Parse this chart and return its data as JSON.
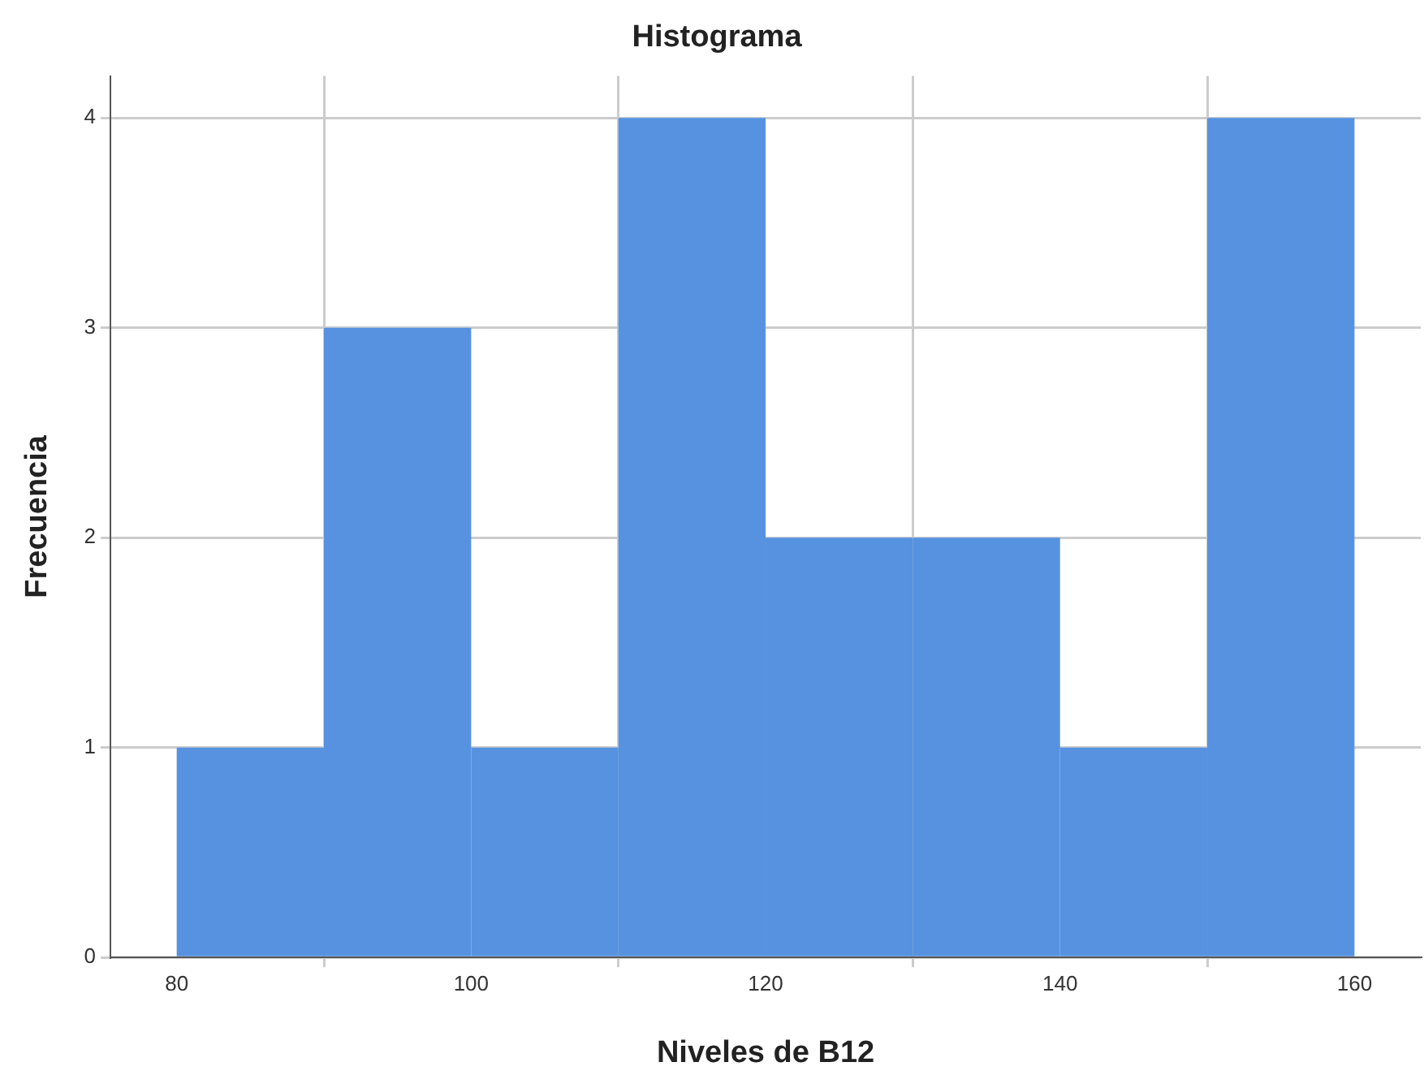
{
  "chart_data": {
    "type": "histogram",
    "title": "Histograma",
    "xlabel": "Niveles de B12",
    "ylabel": "Frecuencia",
    "bins": [
      80,
      90,
      100,
      110,
      120,
      130,
      140,
      150,
      160
    ],
    "values": [
      1,
      3,
      1,
      4,
      2,
      2,
      1,
      4
    ],
    "color": "#5692e0",
    "xlim": [
      75.5,
      164.5
    ],
    "xticks": [
      80,
      100,
      120,
      140,
      160
    ],
    "ylim": [
      0,
      4.2
    ],
    "yticks": [
      0,
      1,
      2,
      3,
      4
    ],
    "grid": true
  }
}
